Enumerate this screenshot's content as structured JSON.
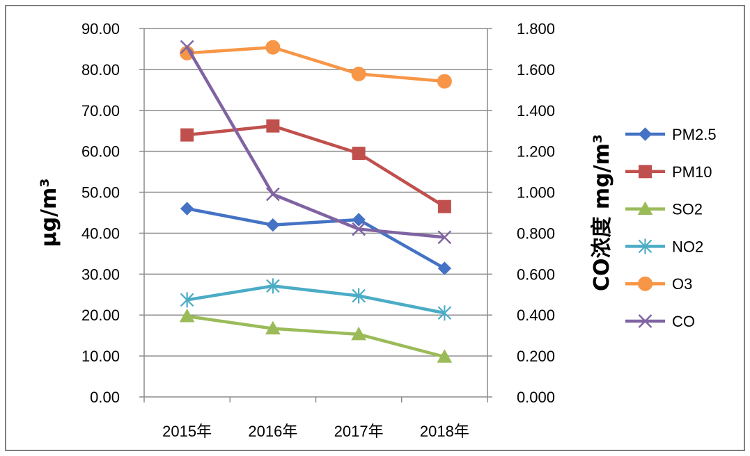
{
  "chart_data": {
    "type": "line",
    "categories": [
      "2015年",
      "2016年",
      "2017年",
      "2018年"
    ],
    "left_axis": {
      "title": "μg/m³",
      "range": [
        0,
        90
      ],
      "ticks": [
        "0.00",
        "10.00",
        "20.00",
        "30.00",
        "40.00",
        "50.00",
        "60.00",
        "70.00",
        "80.00",
        "90.00"
      ]
    },
    "right_axis": {
      "title": "CO浓度 mg/m³",
      "range": [
        0,
        1.8
      ],
      "ticks": [
        "0.000",
        "0.200",
        "0.400",
        "0.600",
        "0.800",
        "1.000",
        "1.200",
        "1.400",
        "1.600",
        "1.800"
      ]
    },
    "grid": true,
    "legend_position": "right",
    "series": [
      {
        "name": "PM2.5",
        "axis": "left",
        "values": [
          46,
          42,
          43.3,
          31.4
        ],
        "color": "#4472C4",
        "marker": "diamond"
      },
      {
        "name": "PM10",
        "axis": "left",
        "values": [
          64,
          66.2,
          59.5,
          46.5
        ],
        "color": "#C0504D",
        "marker": "square"
      },
      {
        "name": "SO2",
        "axis": "left",
        "values": [
          19.7,
          16.7,
          15.3,
          9.8
        ],
        "color": "#9BBB59",
        "marker": "triangle"
      },
      {
        "name": "NO2",
        "axis": "left",
        "values": [
          23.7,
          27.1,
          24.7,
          20.5
        ],
        "color": "#4BACC6",
        "marker": "star"
      },
      {
        "name": "O3",
        "axis": "left",
        "values": [
          84,
          85.4,
          78.9,
          77.1
        ],
        "color": "#F79646",
        "marker": "circle"
      },
      {
        "name": "CO",
        "axis": "right",
        "values": [
          1.71,
          0.99,
          0.82,
          0.78
        ],
        "color": "#8064A2",
        "marker": "x"
      }
    ]
  }
}
